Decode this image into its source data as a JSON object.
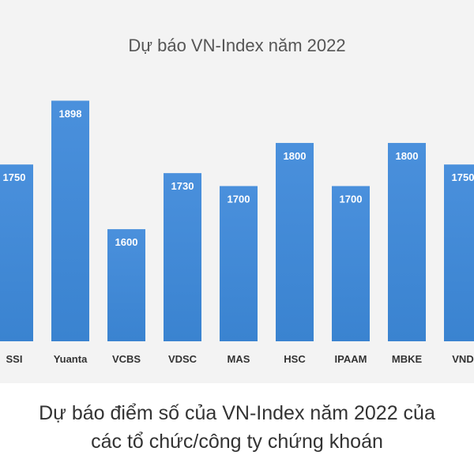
{
  "chart_data": {
    "type": "bar",
    "title": "Dự báo VN-Index năm 2022",
    "categories": [
      "SSI",
      "Yuanta",
      "VCBS",
      "VDSC",
      "MAS",
      "HSC",
      "IPAAM",
      "MBKE",
      "VND"
    ],
    "values": [
      1750,
      1898,
      1600,
      1730,
      1700,
      1800,
      1700,
      1800,
      1750
    ],
    "data_labels": [
      "1750",
      "1898",
      "1600",
      "1730",
      "1700",
      "1800",
      "1700",
      "1800",
      "1750"
    ],
    "xlabel": "",
    "ylabel": "",
    "ylim": [
      1340,
      1930
    ],
    "grid": false,
    "legend": "none",
    "bar_color": "#3f8ad4"
  },
  "caption": {
    "line1": "Dự báo điểm số của VN-Index năm 2022 của",
    "line2": "các tổ chức/công ty chứng khoán"
  }
}
